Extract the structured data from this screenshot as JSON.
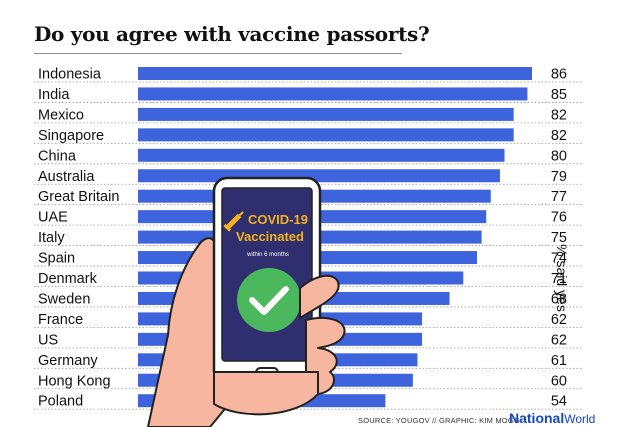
{
  "chart_data": {
    "type": "bar",
    "title": "Do you agree with vaccine passorts?",
    "ylabel": "% said yes",
    "orientation": "horizontal",
    "xlim": [
      0,
      100
    ],
    "bar_color": "#3d63dd",
    "categories": [
      "Indonesia",
      "India",
      "Mexico",
      "Singapore",
      "China",
      "Australia",
      "Great Britain",
      "UAE",
      "Italy",
      "Spain",
      "Denmark",
      "Sweden",
      "France",
      "US",
      "Germany",
      "Hong Kong",
      "Poland"
    ],
    "values": [
      86,
      85,
      82,
      82,
      80,
      79,
      77,
      76,
      75,
      74,
      71,
      68,
      62,
      62,
      61,
      60,
      54
    ]
  },
  "illustration": {
    "phone_heading": "COVID-19 Vaccinated",
    "phone_heading_line1": "COVID-19",
    "phone_heading_line2": "Vaccinated",
    "phone_subtext": "within 6 months",
    "check_icon": "check-icon",
    "syringe_icon": "syringe-icon"
  },
  "footer": {
    "source": "SOURCE: YOUGOV // GRAPHIC: KIM MOGG",
    "brand_bold": "National",
    "brand_light": "World",
    "brand_color": "#1447c4"
  }
}
